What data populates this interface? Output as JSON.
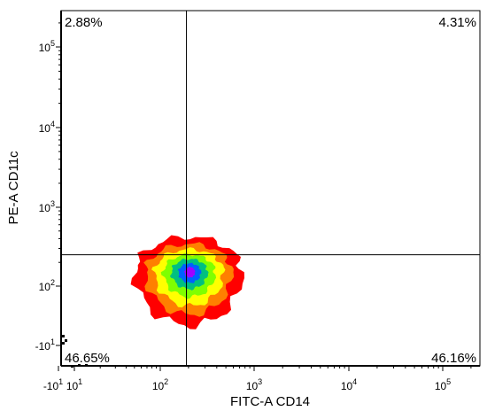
{
  "chart_data": {
    "type": "density-scatter",
    "xlabel": "FITC-A CD14",
    "ylabel": "PE-A CD11c",
    "x_axis": {
      "scale": "biexponential",
      "ticks": [
        {
          "value": -10,
          "label": "-10",
          "sup": "1"
        },
        {
          "value": 10,
          "label": "10",
          "sup": "1"
        },
        {
          "value": 100,
          "label": "10",
          "sup": "2"
        },
        {
          "value": 1000,
          "label": "10",
          "sup": "3"
        },
        {
          "value": 10000,
          "label": "10",
          "sup": "4"
        },
        {
          "value": 100000,
          "label": "10",
          "sup": "5"
        }
      ]
    },
    "y_axis": {
      "scale": "biexponential",
      "ticks": [
        {
          "value": -10,
          "label": "-10",
          "sup": "1"
        },
        {
          "value": 100,
          "label": "10",
          "sup": "2"
        },
        {
          "value": 1000,
          "label": "10",
          "sup": "3"
        },
        {
          "value": 10000,
          "label": "10",
          "sup": "4"
        },
        {
          "value": 100000,
          "label": "10",
          "sup": "5"
        }
      ]
    },
    "gate": {
      "x": 190,
      "y": 250
    },
    "quadrants": {
      "upper_left": "2.88%",
      "upper_right": "4.31%",
      "lower_left": "46.65%",
      "lower_right": "46.16%"
    },
    "population": {
      "center_x": 190,
      "center_y": 150
    },
    "density_colors": [
      "#ff0000",
      "#ff7f00",
      "#ffff00",
      "#7fff00",
      "#00c080",
      "#0060ff",
      "#a000ff"
    ]
  }
}
